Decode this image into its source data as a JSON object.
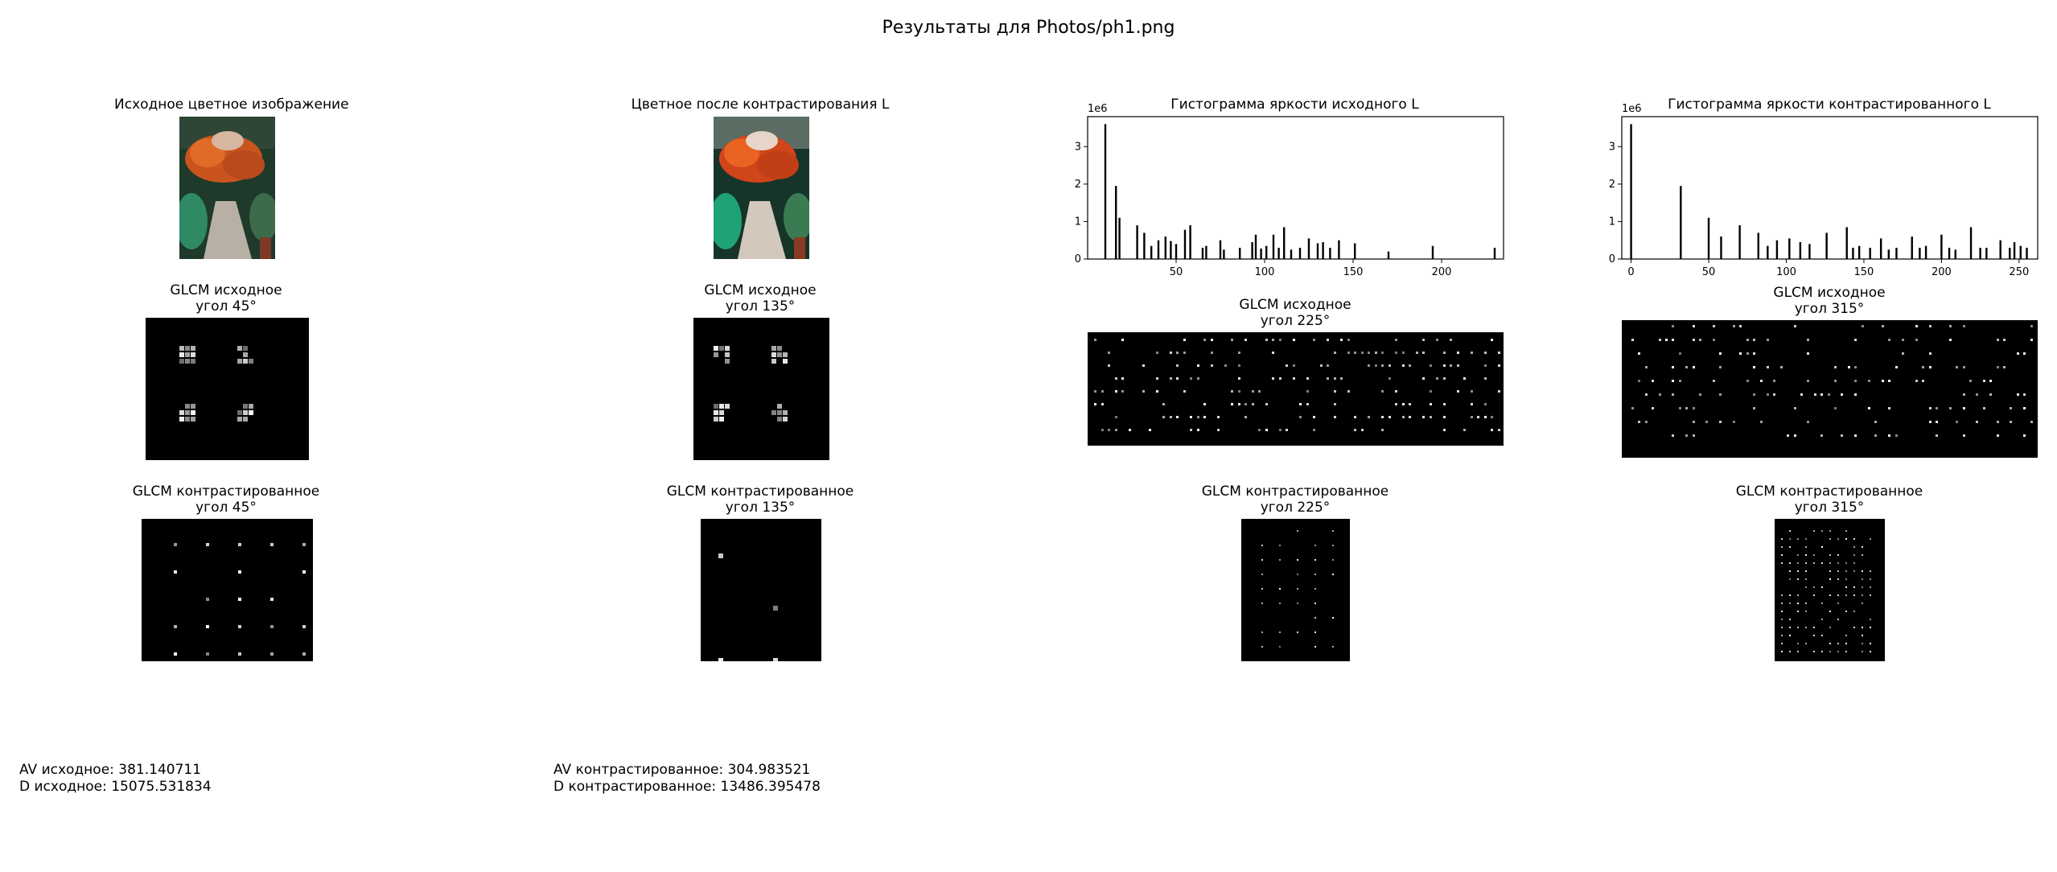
{
  "suptitle": "Результаты для Photos/ph1.png",
  "panels": {
    "orig_color": {
      "title": "Исходное цветное изображение"
    },
    "contrast_color": {
      "title": "Цветное после контрастирования L"
    },
    "glcm_orig_45": {
      "title1": "GLCM исходное",
      "title2": "угол 45°"
    },
    "glcm_orig_135": {
      "title1": "GLCM исходное",
      "title2": "угол 135°"
    },
    "glcm_orig_225": {
      "title1": "GLCM исходное",
      "title2": "угол 225°"
    },
    "glcm_orig_315": {
      "title1": "GLCM исходное",
      "title2": "угол 315°"
    },
    "glcm_con_45": {
      "title1": "GLCM контрастированное",
      "title2": "угол 45°"
    },
    "glcm_con_135": {
      "title1": "GLCM контрастированное",
      "title2": "угол 135°"
    },
    "glcm_con_225": {
      "title1": "GLCM контрастированное",
      "title2": "угол 225°"
    },
    "glcm_con_315": {
      "title1": "GLCM контрастированное",
      "title2": "угол 315°"
    }
  },
  "stats": {
    "av_orig": "AV исходное: 381.140711",
    "d_orig": "D исходное: 15075.531834",
    "av_con": "AV контрастированное: 304.983521",
    "d_con": "D контрастированное: 13486.395478"
  },
  "chart_data": [
    {
      "type": "bar",
      "title": "Гистограмма яркости исходного L",
      "offset_label": "1e6",
      "xticks": [
        50,
        100,
        150,
        200
      ],
      "yticks": [
        0,
        1,
        2,
        3
      ],
      "xlim": [
        0,
        235
      ],
      "ylim": [
        0,
        3.8
      ],
      "x": [
        10,
        16,
        18,
        28,
        32,
        36,
        40,
        44,
        47,
        50,
        55,
        58,
        65,
        67,
        75,
        77,
        86,
        93,
        95,
        98,
        101,
        105,
        108,
        111,
        115,
        120,
        125,
        130,
        133,
        137,
        142,
        151,
        170,
        195,
        230
      ],
      "values": [
        3.6,
        1.95,
        1.1,
        0.9,
        0.7,
        0.35,
        0.5,
        0.6,
        0.48,
        0.4,
        0.78,
        0.9,
        0.3,
        0.35,
        0.5,
        0.25,
        0.3,
        0.45,
        0.65,
        0.28,
        0.35,
        0.65,
        0.3,
        0.85,
        0.25,
        0.3,
        0.55,
        0.42,
        0.45,
        0.3,
        0.5,
        0.42,
        0.2,
        0.35,
        0.3
      ]
    },
    {
      "type": "bar",
      "title": "Гистограмма яркости контрастированного L",
      "offset_label": "1e6",
      "xticks": [
        0,
        50,
        100,
        150,
        200,
        250
      ],
      "yticks": [
        0,
        1,
        2,
        3
      ],
      "xlim": [
        -6,
        262
      ],
      "ylim": [
        0,
        3.8
      ],
      "x": [
        0,
        32,
        50,
        58,
        70,
        82,
        88,
        94,
        102,
        109,
        115,
        126,
        139,
        143,
        147,
        154,
        161,
        166,
        171,
        181,
        186,
        190,
        200,
        205,
        209,
        219,
        225,
        229,
        238,
        244,
        247,
        251,
        255
      ],
      "values": [
        3.6,
        1.95,
        1.1,
        0.6,
        0.9,
        0.7,
        0.35,
        0.5,
        0.55,
        0.45,
        0.4,
        0.7,
        0.85,
        0.3,
        0.35,
        0.3,
        0.55,
        0.25,
        0.3,
        0.6,
        0.3,
        0.35,
        0.65,
        0.3,
        0.25,
        0.85,
        0.3,
        0.3,
        0.5,
        0.3,
        0.45,
        0.35,
        0.3
      ]
    }
  ],
  "images": {
    "glcm_orig_45": {
      "levels": 4,
      "pattern": "clusters"
    },
    "glcm_con_45": {
      "levels": 5,
      "pattern": "sparse-grid"
    }
  }
}
